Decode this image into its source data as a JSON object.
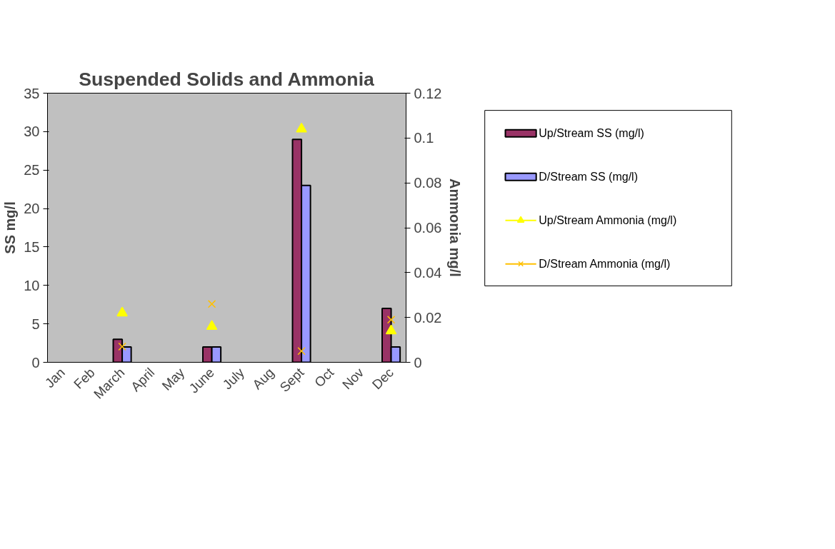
{
  "chart_data": {
    "type": "bar",
    "title": "Suspended Solids and Ammonia",
    "ylabel": "SS mg/l",
    "y2label": "Ammonia mg/l",
    "categories": [
      "Jan",
      "Feb",
      "March",
      "April",
      "May",
      "June",
      "July",
      "Aug",
      "Sept",
      "Oct",
      "Nov",
      "Dec"
    ],
    "series": [
      {
        "name": "Up/Stream SS (mg/l)",
        "color": "#993366",
        "values": [
          null,
          null,
          3,
          null,
          null,
          2,
          null,
          null,
          29,
          null,
          null,
          7
        ]
      },
      {
        "name": "D/Stream SS (mg/l)",
        "color": "#9999ff",
        "values": [
          null,
          null,
          2,
          null,
          null,
          2,
          null,
          null,
          23,
          null,
          null,
          2
        ]
      },
      {
        "name": "Up/Stream Ammonia (mg/l)",
        "type": "scatter",
        "axis": "y2",
        "marker": "triangle",
        "color": "#ffff00",
        "values": [
          null,
          null,
          0.022,
          null,
          null,
          0.016,
          null,
          null,
          0.104,
          null,
          null,
          0.014
        ]
      },
      {
        "name": "D/Stream Ammonia (mg/l)",
        "type": "scatter",
        "axis": "y2",
        "marker": "cross",
        "color": "#ffc000",
        "values": [
          null,
          null,
          0.007,
          null,
          null,
          0.026,
          null,
          null,
          0.005,
          null,
          null,
          0.019
        ]
      }
    ],
    "ylim": [
      0,
      35
    ],
    "yticks": [
      0,
      5,
      10,
      15,
      20,
      25,
      30,
      35
    ],
    "y2lim": [
      0,
      0.12
    ],
    "y2ticks": [
      0,
      0.02,
      0.04,
      0.06,
      0.08,
      0.1,
      0.12
    ],
    "grid": false,
    "legend": "right"
  }
}
